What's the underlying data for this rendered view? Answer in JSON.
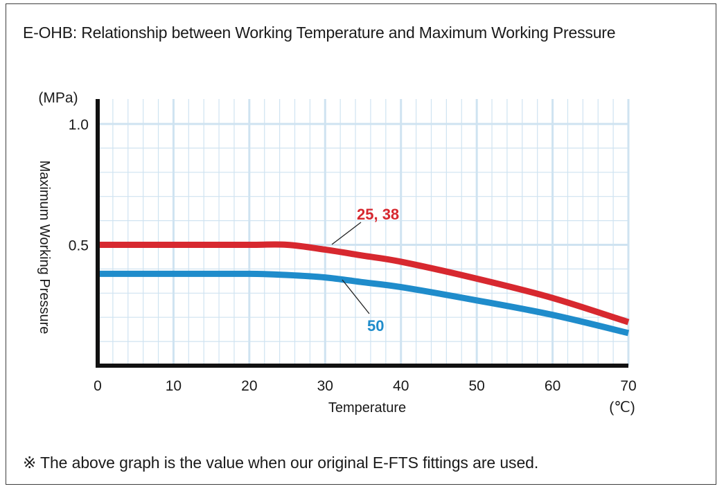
{
  "title": "E-OHB: Relationship between Working Temperature and Maximum Working Pressure",
  "note": "※ The above graph is the value when our original E-FTS fittings are used.",
  "colors": {
    "grid": "#cfe3f1",
    "axis": "#111111",
    "series_red": "#d7282f",
    "series_blue": "#1f8ccb"
  },
  "chart_data": {
    "type": "line",
    "title": "E-OHB: Relationship between Working Temperature and Maximum Working Pressure",
    "xlabel": "Temperature",
    "xunit": "(℃)",
    "ylabel": "Maximum Working Pressure",
    "yunit": "(MPa)",
    "xlim": [
      0,
      70
    ],
    "ylim": [
      0,
      1.1
    ],
    "x_ticks": [
      0,
      10,
      20,
      30,
      40,
      50,
      60,
      70
    ],
    "y_ticks": [
      0.5,
      1.0
    ],
    "y_tick_labels": [
      "0.5",
      "1.0"
    ],
    "grid": true,
    "series": [
      {
        "name": "25, 38",
        "color": "#d7282f",
        "x": [
          0,
          10,
          20,
          25,
          30,
          35,
          40,
          50,
          60,
          70
        ],
        "y": [
          0.5,
          0.5,
          0.5,
          0.5,
          0.48,
          0.455,
          0.43,
          0.36,
          0.28,
          0.18
        ]
      },
      {
        "name": "50",
        "color": "#1f8ccb",
        "x": [
          0,
          10,
          20,
          25,
          30,
          35,
          40,
          50,
          60,
          70
        ],
        "y": [
          0.38,
          0.38,
          0.38,
          0.375,
          0.365,
          0.345,
          0.325,
          0.27,
          0.21,
          0.135
        ]
      }
    ]
  }
}
